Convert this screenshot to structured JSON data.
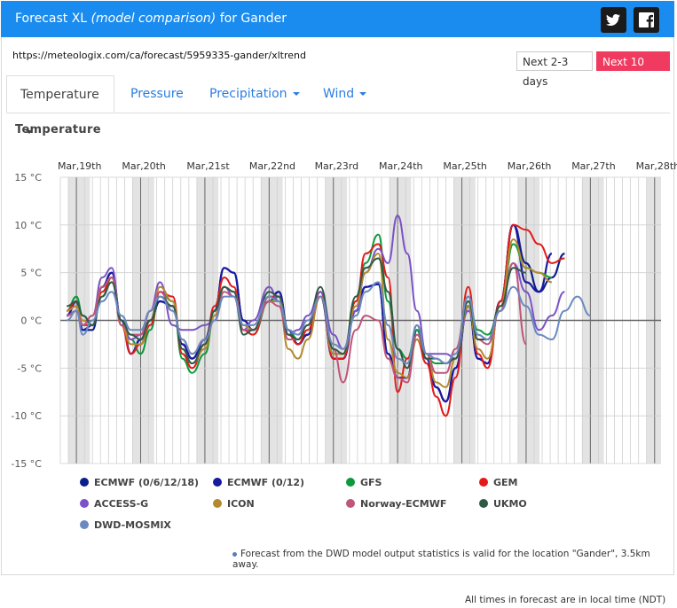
{
  "header": {
    "title_prefix": "Forecast XL ",
    "title_italic": "(model comparison)",
    "title_suffix": " for Gander",
    "twitter_icon": "twitter-icon",
    "facebook_icon": "facebook-icon"
  },
  "url": "https://meteologix.com/ca/forecast/5959335-gander/xltrend",
  "buttons": {
    "next_2_3": "Next 2-3 days",
    "next_10": "Next 10 days"
  },
  "tabs": [
    {
      "label": "Temperature",
      "dropdown": true,
      "active": true
    },
    {
      "label": "Pressure",
      "dropdown": false,
      "active": false
    },
    {
      "label": "Precipitation",
      "dropdown": true,
      "active": false
    },
    {
      "label": "Wind",
      "dropdown": true,
      "active": false
    }
  ],
  "section_title": "Temperature",
  "note": "Forecast from the DWD model output statistics is valid for the location \"Gander\", 3.5km away.",
  "footer": "All times in forecast are in local time (NDT)",
  "chart_data": {
    "type": "line",
    "title": "Temperature",
    "x_day_labels": [
      "Mar,19th",
      "Mar,20th",
      "Mar,21st",
      "Mar,22nd",
      "Mar,23rd",
      "Mar,24th",
      "Mar,25th",
      "Mar,26th",
      "Mar,27th",
      "Mar,28th"
    ],
    "x": [
      18.85,
      19.0,
      19.1,
      19.25,
      19.4,
      19.55,
      19.7,
      19.85,
      20.0,
      20.15,
      20.3,
      20.5,
      20.65,
      20.8,
      21.0,
      21.15,
      21.3,
      21.45,
      21.6,
      21.75,
      22.0,
      22.15,
      22.3,
      22.45,
      22.6,
      22.8,
      23.0,
      23.15,
      23.35,
      23.5,
      23.7,
      23.85,
      24.0,
      24.15,
      24.3,
      24.45,
      24.6,
      24.75,
      24.9,
      25.1,
      25.25,
      25.4,
      25.6,
      25.8,
      26.0,
      26.2,
      26.4,
      26.6,
      26.8,
      27.0,
      27.15,
      27.3,
      27.45,
      27.6,
      27.75,
      27.9
    ],
    "y_ticks": [
      "15 °C",
      "10 °C",
      "5 °C",
      "0 °C",
      "-5 °C",
      "-10 °C",
      "-15 °C"
    ],
    "ylim": [
      -15,
      15
    ],
    "grid": true,
    "series": [
      {
        "name": "ECMWF (0/6/12/18)",
        "color": "#0b1f8a",
        "values": [
          0.5,
          2.0,
          -1.0,
          -1.0,
          3.5,
          5.0,
          0.0,
          -3.5,
          -2.0,
          0.0,
          2.0,
          1.5,
          -2.5,
          -4.0,
          -2.0,
          1.0,
          5.5,
          5.0,
          0.0,
          -1.0,
          2.0,
          3.0,
          -1.0,
          -2.5,
          -1.5,
          2.5,
          -4.0,
          -4.0,
          1.0,
          3.5,
          3.8,
          -3.5,
          -6.0,
          -6.0,
          -1.0,
          -4.0,
          -7.0,
          -8.5,
          -5.0,
          1.5,
          -4.0,
          -4.5,
          2.0,
          10.0,
          6.0,
          3.0,
          4.5,
          7.0,
          null,
          null,
          null,
          null,
          null,
          null,
          null,
          null
        ]
      },
      {
        "name": "ECMWF (0/12)",
        "color": "#1a1aa0",
        "values": [
          0.5,
          2.0,
          -1.0,
          -0.5,
          3.5,
          5.0,
          0.0,
          -3.5,
          -2.0,
          0.0,
          2.0,
          1.5,
          -2.5,
          -4.0,
          -2.0,
          1.0,
          5.5,
          5.0,
          0.0,
          -1.0,
          2.0,
          3.0,
          -1.0,
          -2.5,
          -1.5,
          2.5,
          -4.0,
          -4.0,
          1.0,
          3.5,
          3.8,
          -3.5,
          -6.0,
          -6.0,
          -1.0,
          -4.0,
          -7.0,
          -8.5,
          -5.0,
          1.5,
          -4.0,
          -4.5,
          2.0,
          10.0,
          4.0,
          3.0,
          7.0,
          null,
          null,
          null,
          null,
          null,
          null,
          null,
          null,
          null
        ]
      },
      {
        "name": "GFS",
        "color": "#0b9a3b",
        "values": [
          1.0,
          2.5,
          0.5,
          -0.5,
          2.5,
          4.5,
          0.0,
          -2.0,
          -3.5,
          -1.0,
          3.0,
          2.0,
          -4.0,
          -5.5,
          -3.5,
          0.5,
          3.5,
          3.0,
          -1.0,
          -1.5,
          2.0,
          2.5,
          -1.0,
          -2.0,
          -0.5,
          3.0,
          -3.5,
          -3.5,
          2.0,
          6.0,
          9.0,
          2.0,
          -3.0,
          -4.0,
          -1.0,
          -4.0,
          -4.5,
          -4.5,
          -4.0,
          2.0,
          -1.0,
          -1.5,
          1.0,
          8.0,
          5.5,
          5.0,
          4.5,
          null,
          null,
          null,
          null,
          null,
          null,
          null,
          null,
          null
        ]
      },
      {
        "name": "GEM",
        "color": "#e31a1a",
        "values": [
          1.0,
          2.0,
          -0.5,
          -0.5,
          3.0,
          4.5,
          -0.5,
          -3.5,
          -2.5,
          -0.5,
          3.0,
          2.5,
          -3.5,
          -5.0,
          -2.5,
          1.5,
          4.5,
          3.5,
          -1.0,
          -1.5,
          2.5,
          2.5,
          -1.5,
          -2.5,
          -1.0,
          3.0,
          -4.0,
          -4.0,
          2.0,
          7.0,
          8.0,
          4.5,
          -7.5,
          -4.0,
          -2.0,
          -4.5,
          -8.0,
          -10.0,
          -6.0,
          3.5,
          -3.5,
          -5.0,
          2.0,
          10.0,
          9.5,
          8.0,
          6.0,
          6.5,
          null,
          null,
          null,
          null,
          null,
          null,
          null,
          null
        ]
      },
      {
        "name": "ACCESS-G",
        "color": "#7b52c7",
        "values": [
          0.5,
          1.0,
          -0.5,
          0.5,
          4.5,
          5.5,
          -0.5,
          -2.0,
          -1.5,
          1.0,
          4.0,
          -0.5,
          -1.0,
          -1.0,
          -0.5,
          0.0,
          3.5,
          2.5,
          -1.0,
          0.0,
          3.5,
          2.0,
          -1.5,
          -1.0,
          0.5,
          3.0,
          -1.5,
          -3.0,
          1.0,
          5.0,
          7.5,
          6.0,
          11.0,
          7.0,
          1.0,
          -3.5,
          -3.5,
          -3.5,
          -4.0,
          1.0,
          -1.5,
          -2.0,
          1.0,
          6.0,
          3.0,
          -1.0,
          0.5,
          3.0,
          null,
          null,
          null,
          null,
          null,
          null,
          null,
          null
        ]
      },
      {
        "name": "ICON",
        "color": "#b38a2e",
        "values": [
          1.0,
          1.5,
          0.0,
          -0.5,
          3.5,
          4.5,
          -0.5,
          -2.5,
          -2.5,
          0.0,
          3.5,
          2.0,
          -3.0,
          -4.5,
          -3.0,
          0.5,
          3.5,
          3.0,
          -0.5,
          -1.0,
          2.0,
          2.0,
          -3.0,
          -4.0,
          -2.0,
          2.5,
          -3.5,
          -3.5,
          1.5,
          5.0,
          7.0,
          -2.0,
          -5.5,
          -6.0,
          -2.0,
          -3.5,
          -6.5,
          -7.0,
          -4.0,
          1.5,
          -3.0,
          -4.0,
          1.5,
          8.5,
          5.5,
          5.0,
          4.0,
          null,
          null,
          null,
          null,
          null,
          null,
          null,
          null,
          null
        ]
      },
      {
        "name": "Norway-ECMWF",
        "color": "#c0557a",
        "values": [
          0.5,
          1.0,
          -0.5,
          0.5,
          3.5,
          4.5,
          -0.5,
          -1.5,
          -1.5,
          1.0,
          3.0,
          1.0,
          -2.0,
          -3.5,
          -2.0,
          0.0,
          3.0,
          2.5,
          -1.0,
          -1.0,
          2.0,
          1.5,
          -2.0,
          -2.0,
          -0.5,
          2.5,
          -3.0,
          -6.5,
          -1.0,
          0.5,
          0.0,
          -4.0,
          -6.0,
          -6.5,
          -1.5,
          -3.5,
          -5.5,
          -5.5,
          -3.0,
          2.5,
          -2.0,
          -2.5,
          1.0,
          6.0,
          -2.5,
          null,
          null,
          null,
          null,
          null,
          null,
          null,
          null,
          null,
          null,
          null
        ]
      },
      {
        "name": "UKMO",
        "color": "#2e5a45",
        "values": [
          1.5,
          2.0,
          0.5,
          -0.5,
          2.5,
          4.0,
          0.0,
          -1.5,
          -2.0,
          0.0,
          2.5,
          1.5,
          -3.0,
          -4.5,
          -2.5,
          1.0,
          3.5,
          3.0,
          -1.5,
          -1.0,
          3.0,
          2.5,
          -1.5,
          -2.0,
          -0.5,
          3.5,
          -3.0,
          -3.5,
          2.5,
          5.5,
          6.5,
          3.0,
          -3.0,
          -5.0,
          -0.5,
          -4.0,
          -4.0,
          -4.5,
          -4.0,
          2.0,
          -2.0,
          -2.0,
          1.5,
          5.5,
          5.0,
          null,
          null,
          null,
          null,
          null,
          null,
          null,
          null,
          null,
          null,
          null
        ]
      },
      {
        "name": "DWD-MOSMIX",
        "color": "#6a89c0",
        "values": [
          0.0,
          1.0,
          -1.5,
          0.0,
          2.0,
          3.0,
          0.5,
          -1.0,
          -1.0,
          1.0,
          2.5,
          1.0,
          -2.0,
          -3.5,
          -2.0,
          0.0,
          2.5,
          2.5,
          -0.5,
          -0.5,
          2.5,
          2.0,
          -1.0,
          -1.5,
          0.0,
          2.5,
          -2.5,
          -3.0,
          0.5,
          3.0,
          4.0,
          -0.5,
          -4.0,
          -4.5,
          -0.5,
          -3.5,
          -4.0,
          -4.5,
          -3.5,
          2.5,
          -1.5,
          -2.0,
          1.0,
          3.5,
          1.5,
          -1.5,
          -2.0,
          1.0,
          2.5,
          0.5,
          null,
          null,
          null,
          null,
          null,
          null
        ]
      }
    ],
    "legend": "bottom"
  },
  "colors": {
    "header_bg": "#1a8cf0",
    "next10_bg": "#f03a5f",
    "tab_link": "#2b7de0"
  }
}
